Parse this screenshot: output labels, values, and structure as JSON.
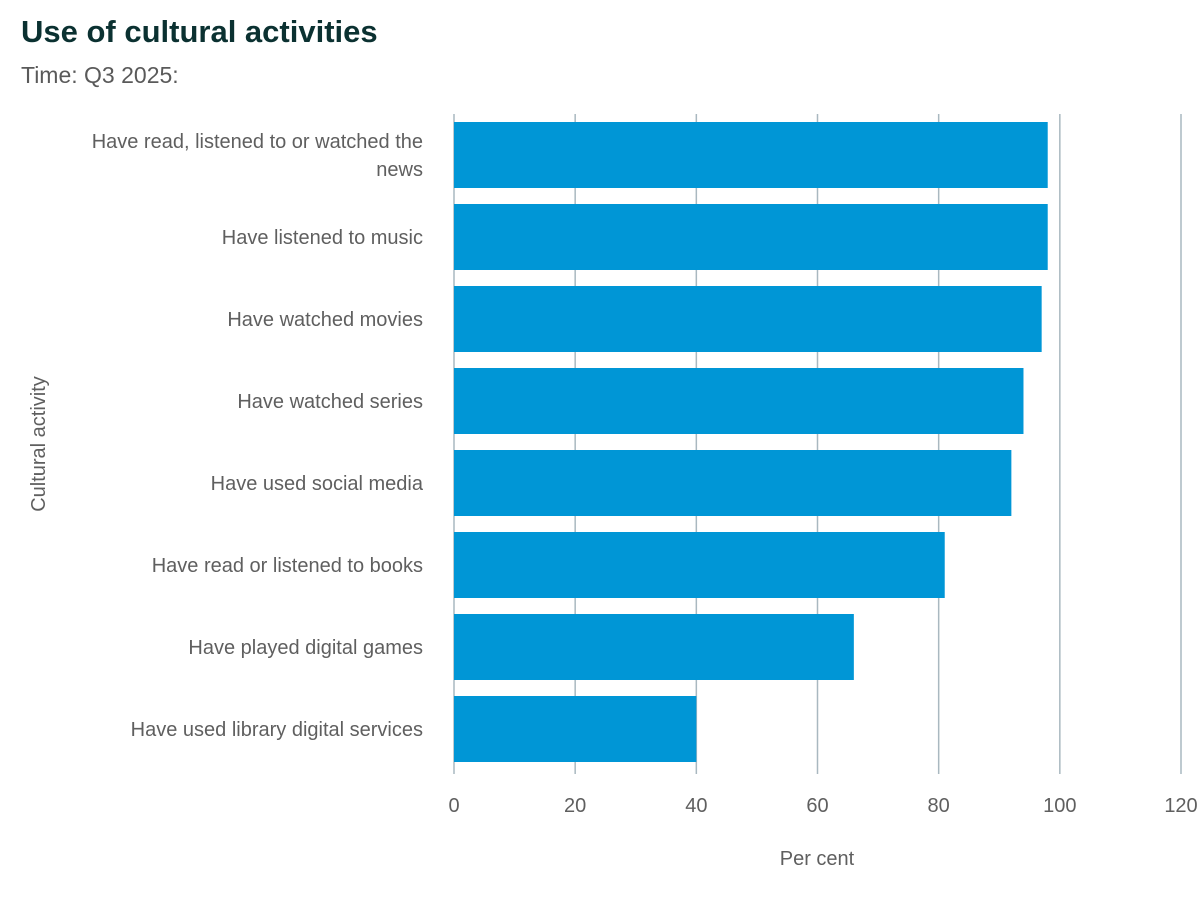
{
  "chart_data": {
    "type": "bar",
    "orientation": "horizontal",
    "title": "Use of cultural activities",
    "subtitle": "Time: Q3 2025:",
    "xlabel": "Per cent",
    "ylabel": "Cultural activity",
    "categories": [
      [
        "Have read, listened to or watched the",
        "news"
      ],
      [
        "Have listened to music"
      ],
      [
        "Have watched movies"
      ],
      [
        "Have watched series"
      ],
      [
        "Have used social media"
      ],
      [
        "Have read or listened to books"
      ],
      [
        "Have played digital games"
      ],
      [
        "Have used library digital services"
      ]
    ],
    "values": [
      98,
      98,
      97,
      94,
      92,
      81,
      66,
      40
    ],
    "xlim": [
      0,
      120
    ],
    "ticks": [
      "0",
      "20",
      "40",
      "60",
      "80",
      "100",
      "120"
    ],
    "tick_values": [
      0,
      20,
      40,
      60,
      80,
      100,
      120
    ],
    "grid": true,
    "legend": "none",
    "bar_color": "#0096d6"
  }
}
